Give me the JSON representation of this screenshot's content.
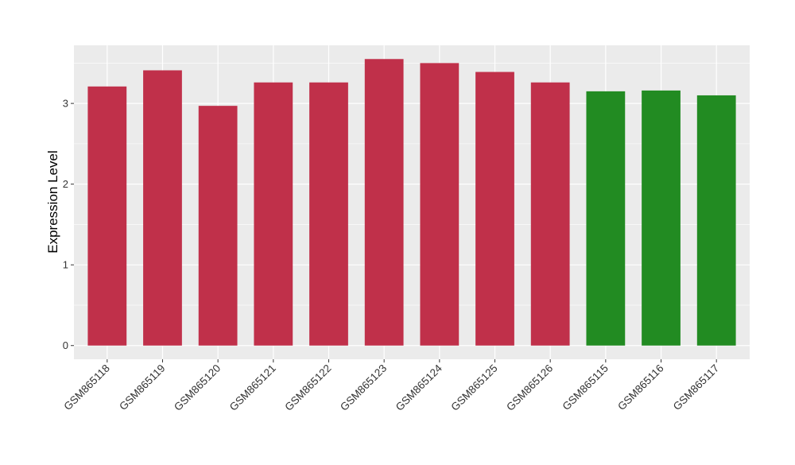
{
  "chart_data": {
    "type": "bar",
    "title": "",
    "xlabel": "",
    "ylabel": "Expression Level",
    "categories": [
      "GSM865118",
      "GSM865119",
      "GSM865120",
      "GSM865121",
      "GSM865122",
      "GSM865123",
      "GSM865124",
      "GSM865125",
      "GSM865126",
      "GSM865115",
      "GSM865116",
      "GSM865117"
    ],
    "values": [
      3.21,
      3.41,
      2.97,
      3.26,
      3.26,
      3.55,
      3.5,
      3.39,
      3.26,
      3.15,
      3.16,
      3.1
    ],
    "bar_colors": [
      "#c0304a",
      "#c0304a",
      "#c0304a",
      "#c0304a",
      "#c0304a",
      "#c0304a",
      "#c0304a",
      "#c0304a",
      "#c0304a",
      "#228b22",
      "#228b22",
      "#228b22"
    ],
    "ylim": [
      -0.17,
      3.72
    ],
    "yticks": [
      0,
      1,
      2,
      3
    ],
    "ytick_labels": [
      "0",
      "1",
      "2",
      "3"
    ],
    "grid": true,
    "legend": "none",
    "panel_background": "#ebebeb",
    "grid_color": "#ffffff"
  }
}
